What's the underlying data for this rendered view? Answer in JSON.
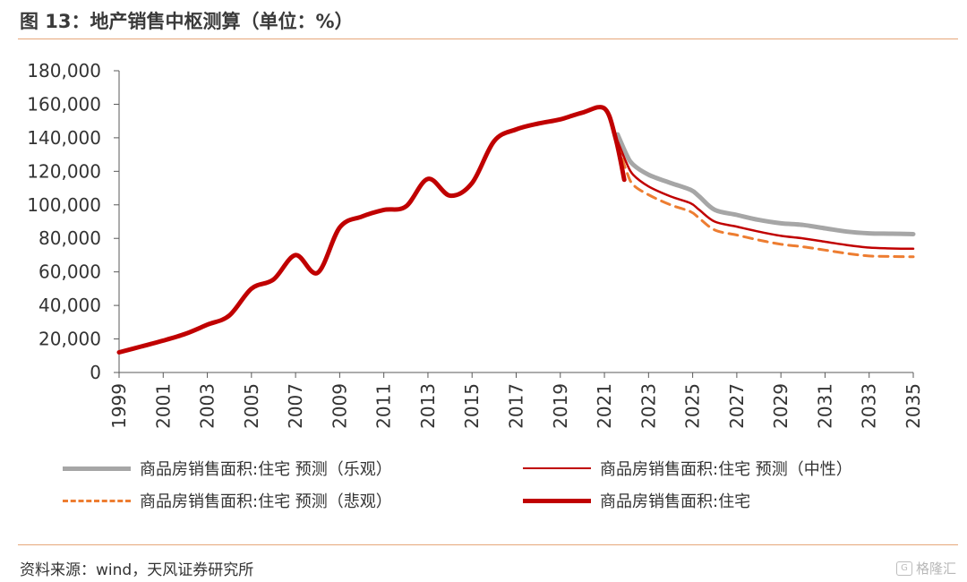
{
  "header": {
    "title": "图 13：地产销售中枢测算（单位：%）"
  },
  "footer": {
    "source": "资料来源：wind，天风证券研究所",
    "watermark": "格隆汇"
  },
  "colors": {
    "actual": "#c00000",
    "mid": "#c00000",
    "optimistic": "#a6a6a6",
    "pessimistic": "#ed7d31",
    "axis": "#595959",
    "rule": "#e6a77a"
  },
  "chart_data": {
    "type": "line",
    "xlim": [
      1999,
      2035
    ],
    "ylim": [
      0,
      180000
    ],
    "xticks": [
      "1999",
      "2001",
      "2003",
      "2005",
      "2007",
      "2009",
      "2011",
      "2013",
      "2015",
      "2017",
      "2019",
      "2021",
      "2023",
      "2025",
      "2027",
      "2029",
      "2031",
      "2033",
      "2035"
    ],
    "yticks": [
      "0",
      "20,000",
      "40,000",
      "60,000",
      "80,000",
      "100,000",
      "120,000",
      "140,000",
      "160,000",
      "180,000"
    ],
    "grid": false,
    "legend_position": "bottom",
    "series": [
      {
        "name": "商品房销售面积:住宅 预测（乐观）",
        "key": "optimistic",
        "style": "solid-thick",
        "x": [
          2021.6,
          2022,
          2022.3,
          2023,
          2024,
          2024.9,
          2025.3,
          2026,
          2027,
          2028,
          2029,
          2030,
          2031,
          2032,
          2033,
          2034,
          2035
        ],
        "y": [
          142000,
          130000,
          124000,
          118000,
          113000,
          109000,
          105000,
          97000,
          94000,
          91000,
          89000,
          88000,
          86000,
          84000,
          83000,
          82800,
          82500
        ]
      },
      {
        "name": "商品房销售面积:住宅 预测（中性）",
        "key": "mid",
        "style": "solid-thin",
        "x": [
          2021.6,
          2022,
          2022.3,
          2023,
          2024,
          2024.9,
          2025.3,
          2026,
          2027,
          2028,
          2029,
          2030,
          2031,
          2032,
          2033,
          2034,
          2035
        ],
        "y": [
          138000,
          125000,
          118000,
          111000,
          105000,
          101000,
          97000,
          90000,
          87000,
          84000,
          81500,
          80000,
          78000,
          76000,
          74500,
          74000,
          73800
        ]
      },
      {
        "name": "商品房销售面积:住宅 预测（悲观）",
        "key": "pessimistic",
        "style": "dashed",
        "x": [
          2021.6,
          2022,
          2022.3,
          2023,
          2024,
          2024.9,
          2025.3,
          2026,
          2027,
          2028,
          2029,
          2030,
          2031,
          2032,
          2033,
          2034,
          2035
        ],
        "y": [
          136000,
          120000,
          112000,
          106000,
          100000,
          96000,
          92000,
          85000,
          82000,
          79000,
          76500,
          75000,
          73000,
          71000,
          69500,
          69200,
          69000
        ]
      },
      {
        "name": "商品房销售面积:住宅",
        "key": "actual",
        "style": "solid-thick",
        "x": [
          1999,
          2000,
          2001,
          2002,
          2003,
          2004,
          2005,
          2006,
          2007,
          2008,
          2009,
          2010,
          2011,
          2012,
          2013,
          2014,
          2015,
          2016,
          2017,
          2018,
          2019,
          2020,
          2021,
          2021.5,
          2021.9
        ],
        "y": [
          12000,
          15500,
          19000,
          23000,
          28500,
          34000,
          50000,
          55500,
          70000,
          59500,
          86500,
          93000,
          97000,
          99000,
          115500,
          105500,
          113000,
          138000,
          145000,
          148500,
          151000,
          155000,
          157500,
          140000,
          115000
        ]
      }
    ]
  }
}
